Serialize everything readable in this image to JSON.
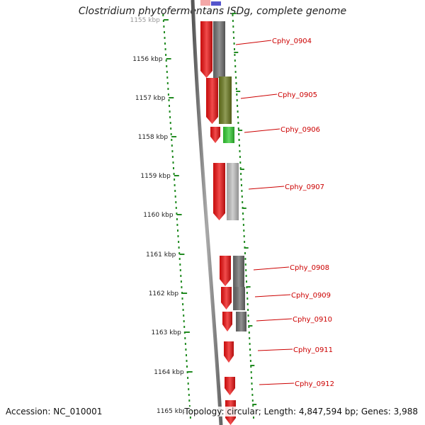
{
  "title": "Clostridium phytofermentans ISDg, complete genome",
  "footer": {
    "accession": "Accession: NC_010001",
    "topology": "Topology: circular; Length: 4,847,594 bp; Genes: 3,988"
  },
  "scale": {
    "labels": [
      "1155 kbp",
      "1156 kbp",
      "1157 kbp",
      "1158 kbp",
      "1159 kbp",
      "1160 kbp",
      "1161 kbp",
      "1162 kbp",
      "1163 kbp",
      "1164 kbp",
      "1165 kbp"
    ]
  },
  "genes": [
    {
      "label": "Cphy_0904",
      "color": "#6e6e6e"
    },
    {
      "label": "Cphy_0905",
      "color": "#6b7a1e"
    },
    {
      "label": "Cphy_0906",
      "color": "#33cc33"
    },
    {
      "label": "Cphy_0907",
      "color": "#c0c0c0"
    },
    {
      "label": "Cphy_0908",
      "color": "#6e6e6e"
    },
    {
      "label": "Cphy_0909",
      "color": "#6e6e6e"
    },
    {
      "label": "Cphy_0910",
      "color": "#6e6e6e"
    },
    {
      "label": "Cphy_0911",
      "color": null
    },
    {
      "label": "Cphy_0912",
      "color": null
    }
  ],
  "colors": {
    "cds": "#ee1111",
    "label": "#cc0000",
    "scale_tick": "#228b22",
    "backbone": "#808080",
    "top_feature": "#5555cc"
  }
}
